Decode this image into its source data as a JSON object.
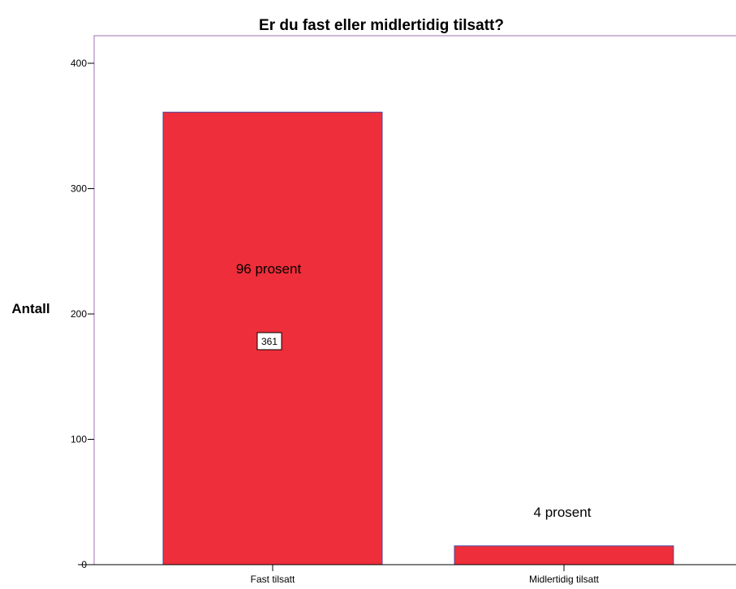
{
  "chart_data": {
    "type": "bar",
    "title": "Er du fast eller midlertidig tilsatt?",
    "xlabel": "",
    "ylabel": "Antall",
    "ylim": [
      0,
      400
    ],
    "yticks": [
      0,
      100,
      200,
      300,
      400
    ],
    "categories": [
      "Fast tilsatt",
      "Midlertidig tilsatt"
    ],
    "values": [
      361,
      15
    ],
    "bar_percent_labels": [
      "96 prosent",
      "4 prosent"
    ],
    "bar_count_labels": [
      "361",
      ""
    ],
    "colors": {
      "bar_fill": "#EE2E3A",
      "bar_stroke": "#4A4AA0",
      "frame": "#A070B0"
    },
    "grid": false,
    "legend": "none"
  }
}
